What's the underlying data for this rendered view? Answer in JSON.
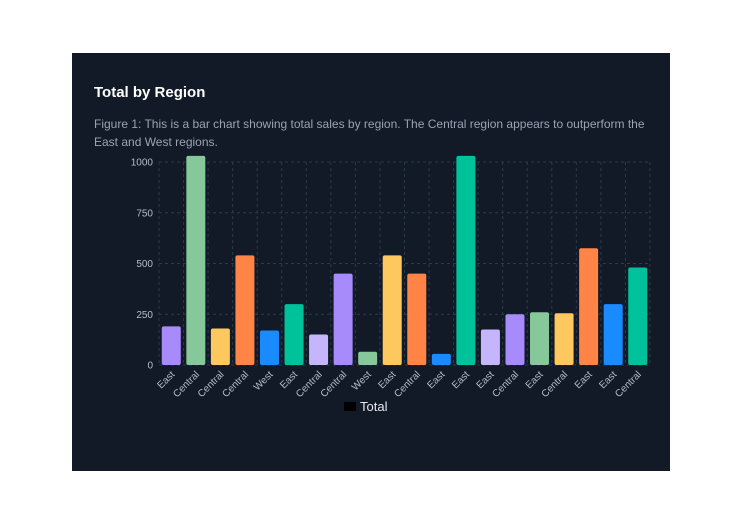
{
  "chart_data": {
    "type": "bar",
    "title": "Total by Region",
    "subtitle": "Figure 1: This is a bar chart showing total sales by region. The Central region appears to outperform the East and West regions.",
    "xlabel": "",
    "ylabel": "",
    "ylim": [
      0,
      1000
    ],
    "yticks": [
      0,
      250,
      500,
      750,
      1000
    ],
    "grid": true,
    "legend_position": "bottom",
    "categories": [
      "East",
      "Central",
      "Central",
      "Central",
      "West",
      "East",
      "Central",
      "Central",
      "West",
      "East",
      "Central",
      "East",
      "East",
      "East",
      "Central",
      "East",
      "Central",
      "East",
      "East",
      "Central"
    ],
    "series": [
      {
        "name": "Total",
        "values": [
          190,
          1030,
          180,
          540,
          170,
          300,
          150,
          450,
          65,
          540,
          450,
          55,
          1030,
          175,
          250,
          260,
          255,
          575,
          300,
          480
        ]
      }
    ],
    "bar_colors": [
      "#a78bfa",
      "#86c89a",
      "#fdc95e",
      "#ff8445",
      "#1a8bff",
      "#00c29a",
      "#c4b5fd",
      "#a78bfa",
      "#86c89a",
      "#fdc95e",
      "#ff8445",
      "#1a8bff",
      "#00c29a",
      "#c4b5fd",
      "#a78bfa",
      "#86c89a",
      "#fdc95e",
      "#ff8445",
      "#1a8bff",
      "#00c29a"
    ],
    "legend_swatch_color": "#000000"
  }
}
